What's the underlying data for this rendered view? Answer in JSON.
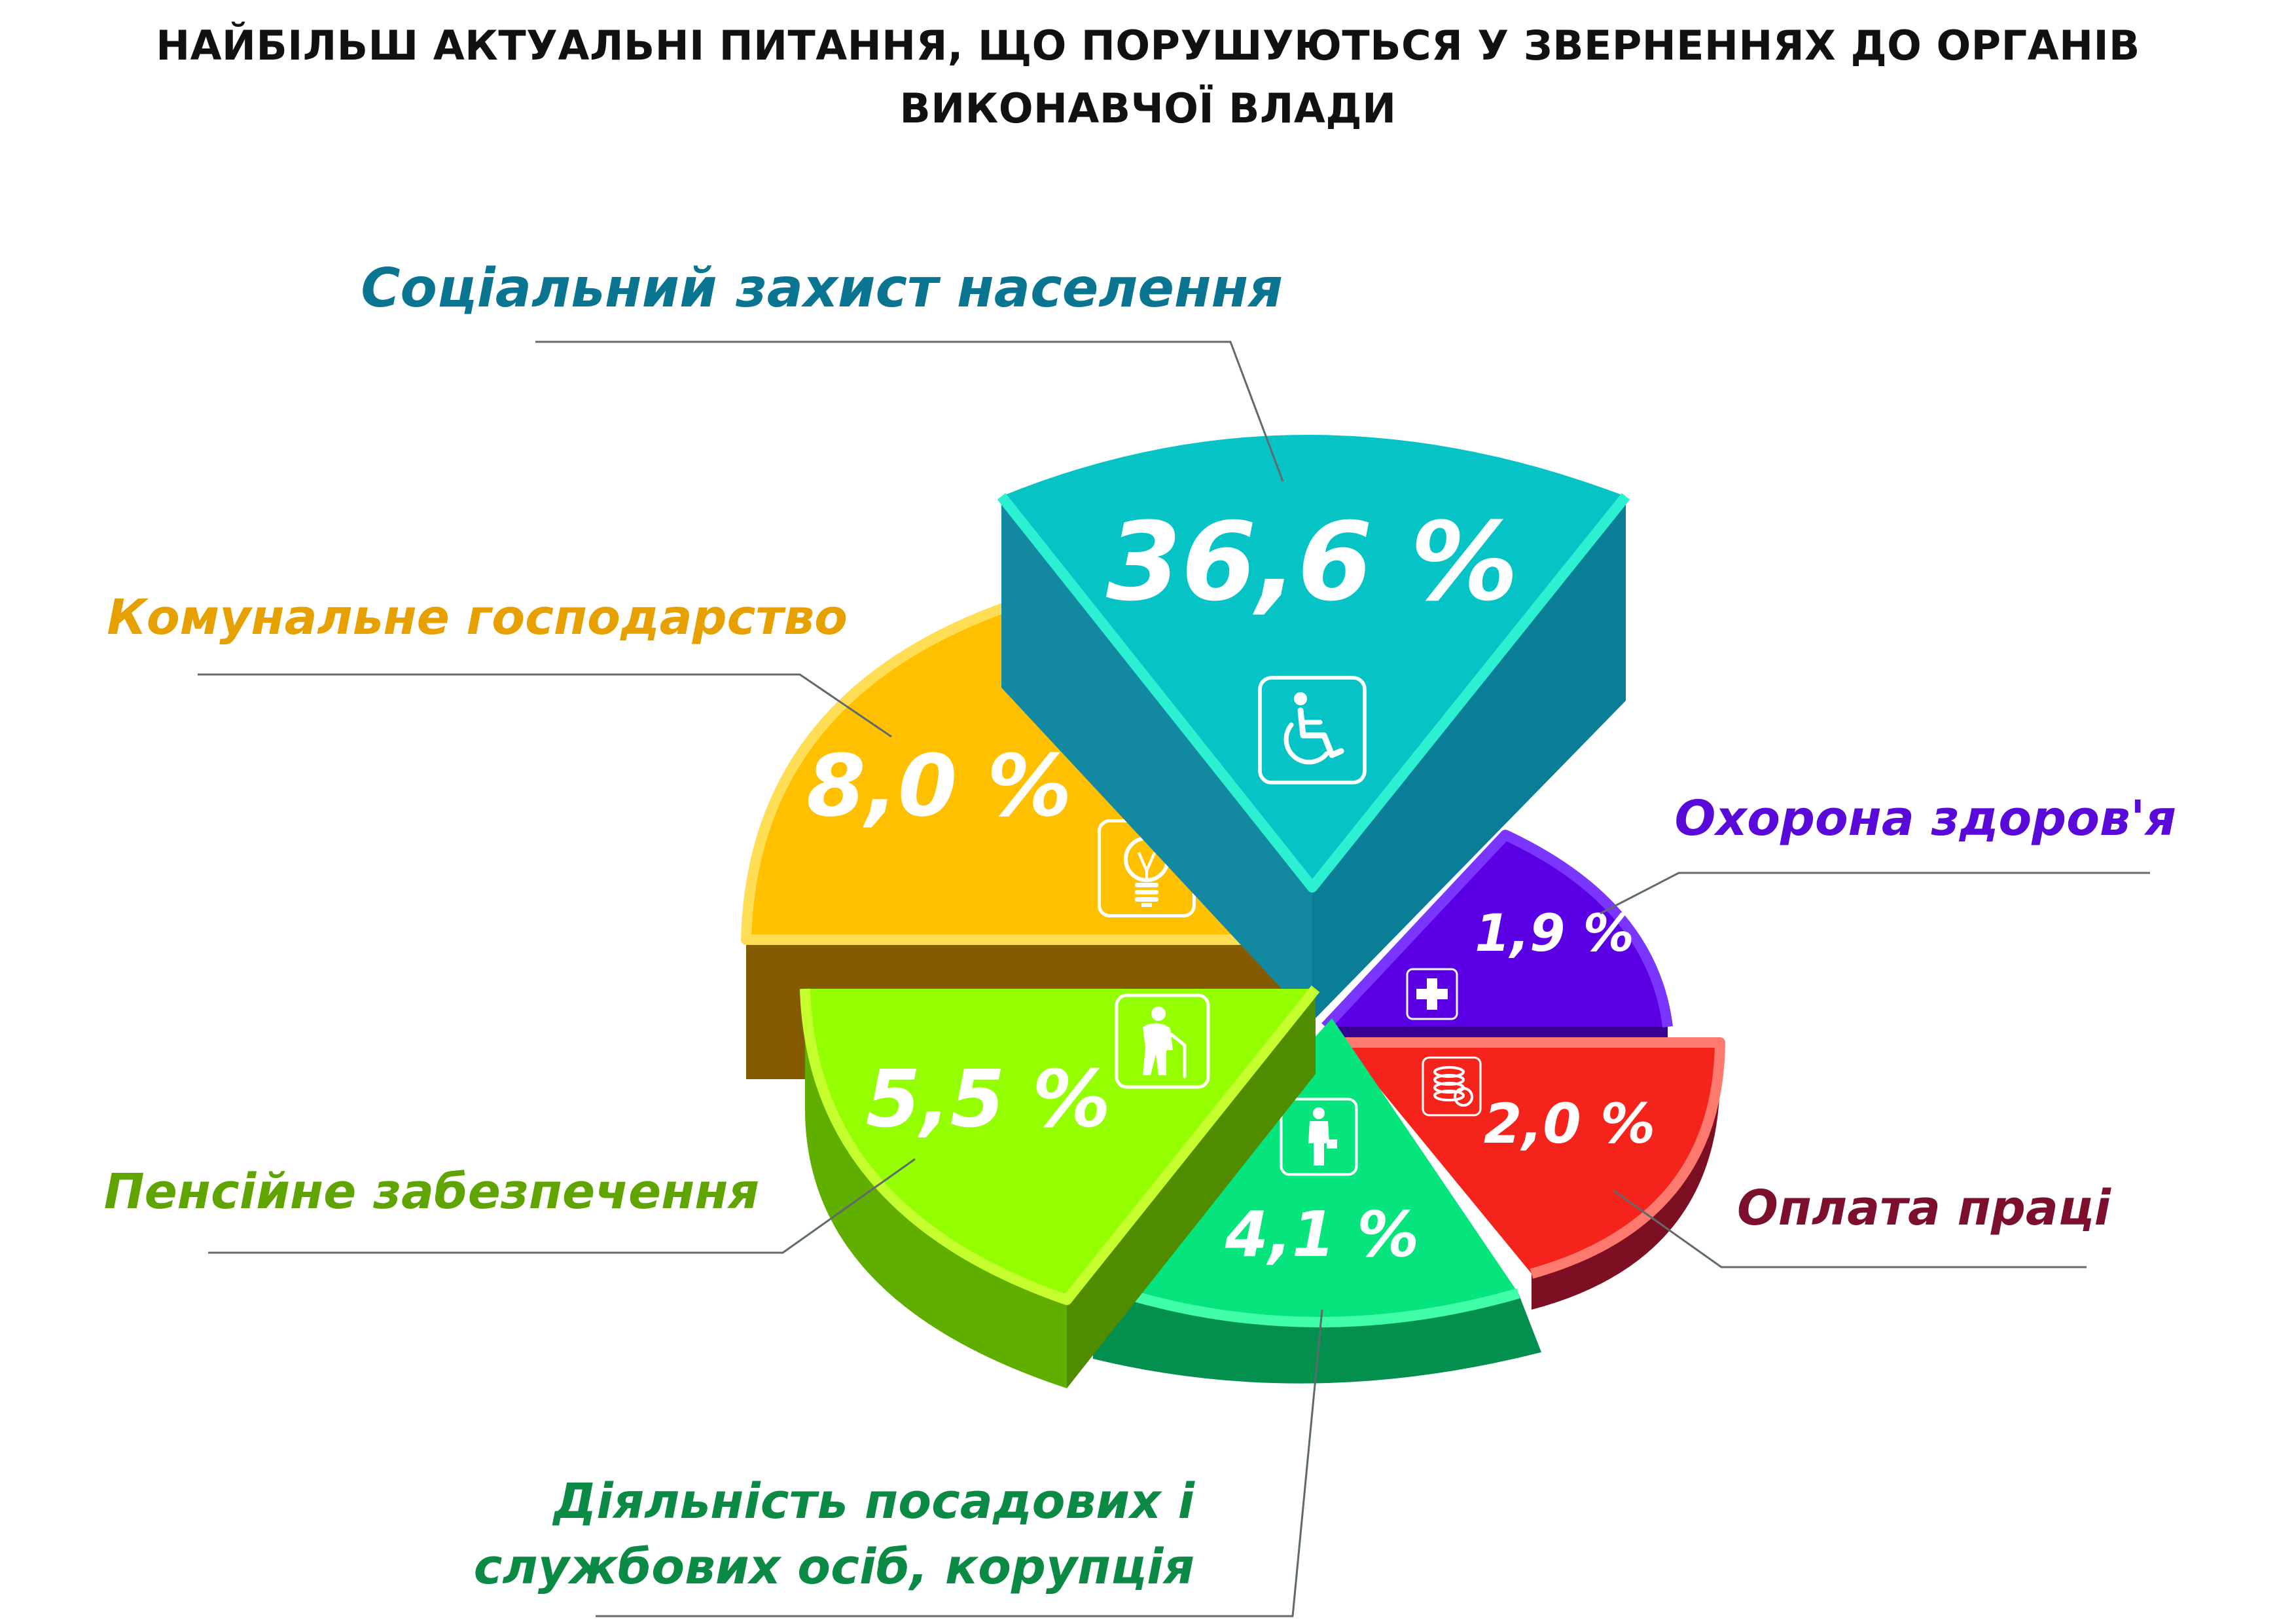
{
  "title_lines": [
    "НАЙБІЛЬШ АКТУАЛЬНІ ПИТАННЯ, ЩО ПОРУШУЮТЬСЯ У ЗВЕРНЕННЯХ ДО ОРГАНІВ",
    "ВИКОНАВЧОЇ ВЛАДИ"
  ],
  "chart_data": {
    "type": "pie",
    "unit": "%",
    "title": "НАЙБІЛЬШ АКТУАЛЬНІ ПИТАННЯ, ЩО ПОРУШУЮТЬСЯ У ЗВЕРНЕННЯХ ДО ОРГАНІВ ВИКОНАВЧОЇ ВЛАДИ",
    "slices": [
      {
        "key": "social",
        "label": "Соціальний захист населення",
        "label_lines": [
          "Соціальний захист населення"
        ],
        "value": 36.6,
        "value_label": "36,6 %",
        "icon": "wheelchair-icon",
        "color": "#06C4C6",
        "side_color": "#0A7E96",
        "label_color": "#0A7590"
      },
      {
        "key": "health",
        "label": "Охорона здоров'я",
        "label_lines": [
          "Охорона здоров'я"
        ],
        "value": 1.9,
        "value_label": "1,9 %",
        "icon": "medical-cross-icon",
        "color": "#5B00E4",
        "side_color": "#3A0095",
        "label_color": "#5A0AD8"
      },
      {
        "key": "wages",
        "label": "Оплата праці",
        "label_lines": [
          "Оплата праці"
        ],
        "value": 2.0,
        "value_label": "2,0 %",
        "icon": "coins-icon",
        "color": "#F4231B",
        "side_color": "#7C0F22",
        "label_color": "#7C0F2C"
      },
      {
        "key": "officials",
        "label": "Діяльність посадових і службових осіб, корупція",
        "label_lines": [
          "Діяльність посадових і",
          "службових осіб, корупція"
        ],
        "value": 4.1,
        "value_label": "4,1 %",
        "icon": "official-person-icon",
        "color": "#05E47D",
        "side_color": "#03904E",
        "label_color": "#0B8A45"
      },
      {
        "key": "pension",
        "label": "Пенсійне забезпечення",
        "label_lines": [
          "Пенсійне забезпечення"
        ],
        "value": 5.5,
        "value_label": "5,5 %",
        "icon": "elderly-person-icon",
        "color": "#94FF00",
        "side_color": "#60AE00",
        "label_color": "#5FA400"
      },
      {
        "key": "utilities",
        "label": "Комунальне господарство",
        "label_lines": [
          "Комунальне господарство"
        ],
        "value": 8.0,
        "value_label": "8,0 %",
        "icon": "light-bulb-icon",
        "color": "#FFC000",
        "side_color": "#845B00",
        "label_color": "#E6A000"
      }
    ]
  }
}
